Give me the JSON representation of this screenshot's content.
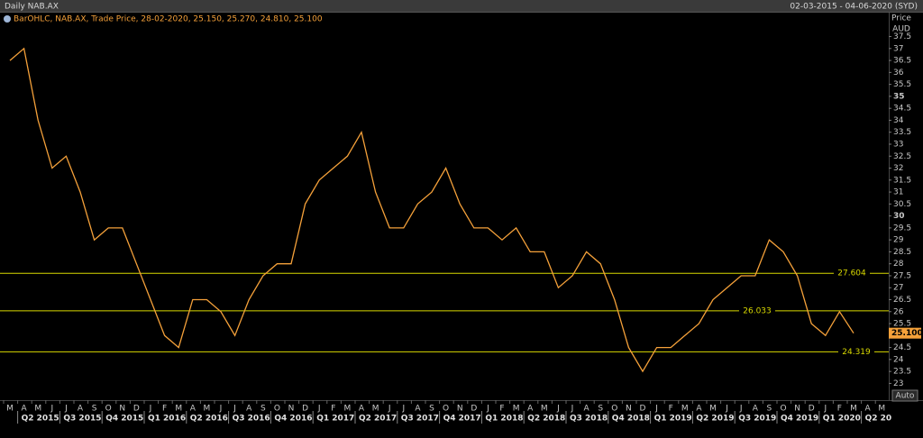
{
  "chart_data": {
    "type": "line",
    "title": "Daily NAB.AX",
    "date_range": "02-03-2015 - 04-06-2020 (SYD)",
    "y_label": "Price",
    "y_unit": "AUD",
    "auto_button": "Auto",
    "categories": [
      "M",
      "A",
      "M",
      "J",
      "J",
      "A",
      "S",
      "O",
      "N",
      "D",
      "J",
      "F",
      "M",
      "A",
      "M",
      "J",
      "J",
      "A",
      "S",
      "O",
      "N",
      "D",
      "J",
      "F",
      "M",
      "A",
      "M",
      "J",
      "J",
      "A",
      "S",
      "O",
      "N",
      "D",
      "J",
      "F",
      "M",
      "A",
      "M",
      "J",
      "J",
      "A",
      "S",
      "O",
      "N",
      "D",
      "J",
      "F",
      "M",
      "A",
      "M",
      "J",
      "J",
      "A",
      "S",
      "O",
      "N",
      "D",
      "J",
      "F",
      "M",
      "A",
      "M"
    ],
    "quarters": [
      "Q2 2015",
      "Q3 2015",
      "Q4 2015",
      "Q1 2016",
      "Q2 2016",
      "Q3 2016",
      "Q4 2016",
      "Q1 2017",
      "Q2 2017",
      "Q3 2017",
      "Q4 2017",
      "Q1 2018",
      "Q2 2018",
      "Q3 2018",
      "Q4 2018",
      "Q1 2019",
      "Q2 2019",
      "Q3 2019",
      "Q4 2019",
      "Q1 2020",
      "Q2 20"
    ],
    "series": [
      {
        "name": "BarOHLC, NAB.AX, Trade Price, 28-02-2020, 25.150, 25.270, 24.810, 25.100",
        "color": "#f5a13a",
        "values": [
          36.5,
          37,
          34,
          32,
          32.5,
          31,
          29,
          29.5,
          29.5,
          28,
          26.5,
          25,
          24.5,
          26.5,
          26.5,
          26,
          25,
          26.5,
          27.5,
          28,
          28,
          30.5,
          31.5,
          32,
          32.5,
          33.5,
          31,
          29.5,
          29.5,
          30.5,
          31,
          32,
          30.5,
          29.5,
          29.5,
          29,
          29.5,
          28.5,
          28.5,
          27,
          27.5,
          28.5,
          28,
          26.5,
          24.5,
          23.5,
          24.5,
          24.5,
          25,
          25.5,
          26.5,
          27,
          27.5,
          27.5,
          29,
          28.5,
          27.5,
          25.5,
          25,
          26,
          25.1,
          null,
          null
        ]
      }
    ],
    "last_price": "25.100",
    "last_price_value": 25.1,
    "levels": [
      27.604,
      26.033,
      24.319
    ],
    "level_color": "#d8d800",
    "ylim": [
      22.3,
      38.5
    ],
    "yticks": [
      23,
      23.5,
      24,
      24.5,
      25,
      25.5,
      26,
      26.5,
      27,
      27.5,
      28,
      28.5,
      29,
      29.5,
      30,
      30.5,
      31,
      31.5,
      32,
      32.5,
      33,
      33.5,
      34,
      34.5,
      35,
      35.5,
      36,
      36.5,
      37,
      37.5
    ]
  }
}
